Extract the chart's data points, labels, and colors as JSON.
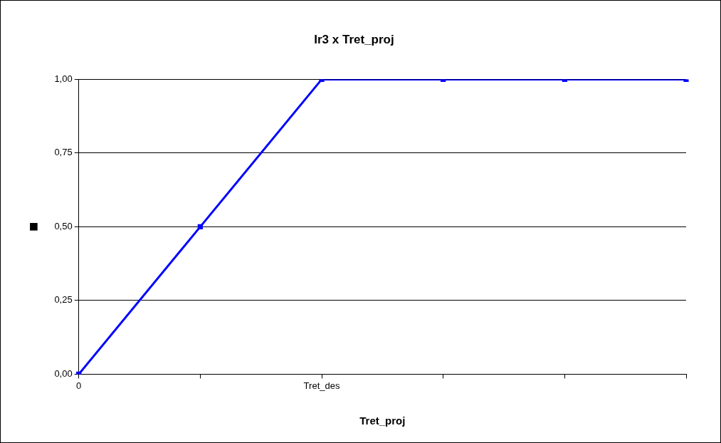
{
  "chart_data": {
    "type": "line",
    "title": "Ir3 x Tret_proj",
    "xlabel": "Tret_proj",
    "ylabel": "■",
    "categories": [
      "0",
      null,
      "Tret_des",
      null,
      null,
      null
    ],
    "series": [
      {
        "color": "#0000ff",
        "values": [
          0,
          0.5,
          1,
          1,
          1,
          1
        ]
      }
    ],
    "ylim": [
      0,
      1
    ],
    "yticks": [
      {
        "value": 0,
        "label": "0,00"
      },
      {
        "value": 0.25,
        "label": "0,25"
      },
      {
        "value": 0.5,
        "label": "0,50"
      },
      {
        "value": 0.75,
        "label": "0,75"
      },
      {
        "value": 1,
        "label": "1,00"
      }
    ],
    "grid": "y",
    "legend": false,
    "marker": "square",
    "line_style": "solid"
  }
}
